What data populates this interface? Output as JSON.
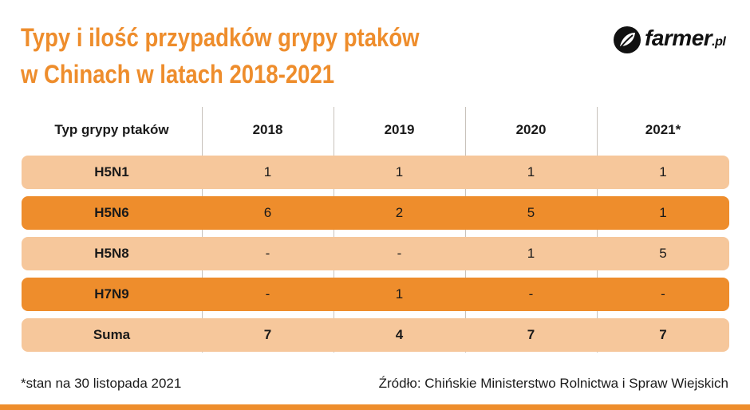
{
  "title": {
    "line1": "Typy i ilość przypadków grypy ptaków",
    "line2": "w Chinach w latach 2018-2021"
  },
  "logo": {
    "name": "farmer",
    "tld": ".pl",
    "icon": "leaf-icon"
  },
  "colors": {
    "accent": "#ee8d2c",
    "row_dark": "#ee8d2c",
    "row_light": "#f6c79b"
  },
  "chart_data": {
    "type": "table",
    "columns": [
      "Typ grypy ptaków",
      "2018",
      "2019",
      "2020",
      "2021*"
    ],
    "rows": [
      {
        "label": "H5N1",
        "values": [
          "1",
          "1",
          "1",
          "1"
        ],
        "style": "light"
      },
      {
        "label": "H5N6",
        "values": [
          "6",
          "2",
          "5",
          "1"
        ],
        "style": "dark"
      },
      {
        "label": "H5N8",
        "values": [
          "-",
          "-",
          "1",
          "5"
        ],
        "style": "light"
      },
      {
        "label": "H7N9",
        "values": [
          "-",
          "1",
          "-",
          "-"
        ],
        "style": "dark"
      },
      {
        "label": "Suma",
        "values": [
          "7",
          "4",
          "7",
          "7"
        ],
        "style": "light",
        "bold": true
      }
    ]
  },
  "footnote": "*stan na 30 listopada 2021",
  "source": "Źródło: Chińskie Ministerstwo Rolnictwa i Spraw Wiejskich"
}
